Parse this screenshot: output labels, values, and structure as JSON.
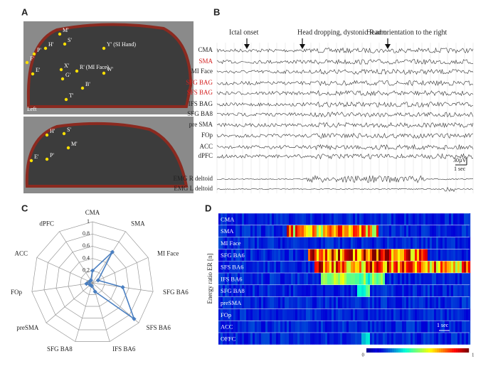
{
  "panel_a": {
    "letter": "A",
    "top_labels": [
      "M'",
      "S'",
      "H'",
      "P'",
      "F'",
      "X'",
      "Y' (SI Hand)",
      "R' (MI Face)",
      "W'",
      "E'",
      "G'",
      "B'",
      "T'"
    ],
    "side": "Left",
    "bottom_labels": [
      "H'",
      "S'",
      "M'",
      "E'",
      "P'"
    ]
  },
  "panel_b": {
    "letter": "B",
    "events": [
      "Ictal onset",
      "Head dropping, dystonic R.arm",
      "Head orientation to the right"
    ],
    "channels": [
      "CMA",
      "SMA",
      "MI Face",
      "SFG BAG",
      "SFS BAG",
      "IFS BAG",
      "SFG BA8",
      "pre SMA",
      "FOp",
      "ACC",
      "dPFC"
    ],
    "emg": [
      "EMG R deltoid",
      "EMG L deltoid"
    ],
    "scale_amp": "30µV",
    "scale_time": "1 sec"
  },
  "chart_data": {
    "type": "radar",
    "letter": "C",
    "categories": [
      "CMA",
      "SMA",
      "MI Face",
      "SFG BA6",
      "SFS BA6",
      "IFS BA6",
      "SFG BA8",
      "preSMA",
      "FOp",
      "ACC",
      "dPFC"
    ],
    "values": [
      0.2,
      0.6,
      0.1,
      0.5,
      0.9,
      0.15,
      0.05,
      0.05,
      0.1,
      0.05,
      0.05
    ],
    "color": "#4a7fc1",
    "rlim": [
      0,
      1
    ],
    "rticks": [
      0,
      0.2,
      0.4,
      0.6,
      0.8,
      1
    ],
    "grid": true
  },
  "panel_d": {
    "letter": "D",
    "ylabel": "Energy ratio ER [n]",
    "rows": [
      "CMA",
      "SMA",
      "MI Face",
      "SFG BA6",
      "SFS BA6",
      "IFS BA6",
      "SFG BA8",
      "preSMA",
      "FOp",
      "ACC",
      "OFFC"
    ],
    "scale_time": "1 sec",
    "colorbar_min": "0",
    "colorbar_max": "1"
  }
}
